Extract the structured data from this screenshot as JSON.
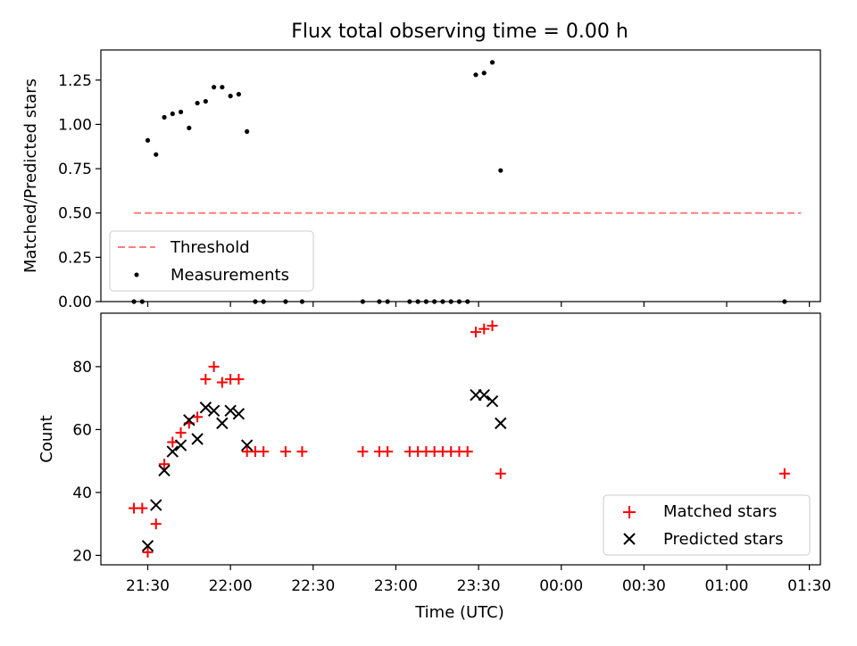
{
  "figure_title": "Flux total observing time = 0.00 h",
  "chart_data": [
    {
      "type": "scatter",
      "panel": "top",
      "title": "Flux total observing time = 0.00 h",
      "xlabel": "",
      "ylabel": "Matched/Predicted stars",
      "xlim": [
        "21:13",
        "01:34"
      ],
      "ylim": [
        0,
        1.42
      ],
      "yticks": [
        0.0,
        0.25,
        0.5,
        0.75,
        1.0,
        1.25
      ],
      "ytick_labels": [
        "0.00",
        "0.25",
        "0.50",
        "0.75",
        "1.00",
        "1.25"
      ],
      "legend_position": "lower-left",
      "threshold": {
        "name": "Threshold",
        "color": "#ff7f7f",
        "x": [
          "21:25",
          "01:27"
        ],
        "y": 0.5
      },
      "series": [
        {
          "name": "Measurements",
          "color": "#000000",
          "marker": "dot",
          "points": [
            {
              "x": "21:25",
              "y": 0.0
            },
            {
              "x": "21:28",
              "y": 0.0
            },
            {
              "x": "21:30",
              "y": 0.91
            },
            {
              "x": "21:33",
              "y": 0.83
            },
            {
              "x": "21:36",
              "y": 1.04
            },
            {
              "x": "21:39",
              "y": 1.06
            },
            {
              "x": "21:42",
              "y": 1.07
            },
            {
              "x": "21:45",
              "y": 0.98
            },
            {
              "x": "21:48",
              "y": 1.12
            },
            {
              "x": "21:51",
              "y": 1.13
            },
            {
              "x": "21:54",
              "y": 1.21
            },
            {
              "x": "21:57",
              "y": 1.21
            },
            {
              "x": "22:00",
              "y": 1.16
            },
            {
              "x": "22:03",
              "y": 1.17
            },
            {
              "x": "22:06",
              "y": 0.96
            },
            {
              "x": "22:09",
              "y": 0.0
            },
            {
              "x": "22:12",
              "y": 0.0
            },
            {
              "x": "22:20",
              "y": 0.0
            },
            {
              "x": "22:26",
              "y": 0.0
            },
            {
              "x": "22:48",
              "y": 0.0
            },
            {
              "x": "22:54",
              "y": 0.0
            },
            {
              "x": "22:57",
              "y": 0.0
            },
            {
              "x": "23:05",
              "y": 0.0
            },
            {
              "x": "23:08",
              "y": 0.0
            },
            {
              "x": "23:11",
              "y": 0.0
            },
            {
              "x": "23:14",
              "y": 0.0
            },
            {
              "x": "23:17",
              "y": 0.0
            },
            {
              "x": "23:20",
              "y": 0.0
            },
            {
              "x": "23:23",
              "y": 0.0
            },
            {
              "x": "23:26",
              "y": 0.0
            },
            {
              "x": "23:29",
              "y": 1.28
            },
            {
              "x": "23:32",
              "y": 1.29
            },
            {
              "x": "23:35",
              "y": 1.35
            },
            {
              "x": "23:38",
              "y": 0.74
            },
            {
              "x": "01:21",
              "y": 0.0
            }
          ]
        }
      ]
    },
    {
      "type": "scatter",
      "panel": "bottom",
      "xlabel": "Time (UTC)",
      "ylabel": "Count",
      "xlim": [
        "21:13",
        "01:34"
      ],
      "ylim": [
        17,
        97
      ],
      "yticks": [
        20,
        40,
        60,
        80
      ],
      "ytick_labels": [
        "20",
        "40",
        "60",
        "80"
      ],
      "xticks": [
        "21:30",
        "22:00",
        "22:30",
        "23:00",
        "23:30",
        "00:00",
        "00:30",
        "01:00",
        "01:30"
      ],
      "legend_position": "lower-right",
      "series": [
        {
          "name": "Matched stars",
          "color": "#ff0000",
          "marker": "plus",
          "points": [
            {
              "x": "21:25",
              "y": 35
            },
            {
              "x": "21:28",
              "y": 35
            },
            {
              "x": "21:30",
              "y": 21
            },
            {
              "x": "21:33",
              "y": 30
            },
            {
              "x": "21:36",
              "y": 49
            },
            {
              "x": "21:39",
              "y": 56
            },
            {
              "x": "21:42",
              "y": 59
            },
            {
              "x": "21:45",
              "y": 62
            },
            {
              "x": "21:48",
              "y": 64
            },
            {
              "x": "21:51",
              "y": 76
            },
            {
              "x": "21:54",
              "y": 80
            },
            {
              "x": "21:57",
              "y": 75
            },
            {
              "x": "22:00",
              "y": 76
            },
            {
              "x": "22:03",
              "y": 76
            },
            {
              "x": "22:06",
              "y": 53
            },
            {
              "x": "22:09",
              "y": 53
            },
            {
              "x": "22:12",
              "y": 53
            },
            {
              "x": "22:20",
              "y": 53
            },
            {
              "x": "22:26",
              "y": 53
            },
            {
              "x": "22:48",
              "y": 53
            },
            {
              "x": "22:54",
              "y": 53
            },
            {
              "x": "22:57",
              "y": 53
            },
            {
              "x": "23:05",
              "y": 53
            },
            {
              "x": "23:08",
              "y": 53
            },
            {
              "x": "23:11",
              "y": 53
            },
            {
              "x": "23:14",
              "y": 53
            },
            {
              "x": "23:17",
              "y": 53
            },
            {
              "x": "23:20",
              "y": 53
            },
            {
              "x": "23:23",
              "y": 53
            },
            {
              "x": "23:26",
              "y": 53
            },
            {
              "x": "23:29",
              "y": 91
            },
            {
              "x": "23:32",
              "y": 92
            },
            {
              "x": "23:35",
              "y": 93
            },
            {
              "x": "23:38",
              "y": 46
            },
            {
              "x": "01:21",
              "y": 46
            }
          ]
        },
        {
          "name": "Predicted stars",
          "color": "#000000",
          "marker": "x",
          "points": [
            {
              "x": "21:30",
              "y": 23
            },
            {
              "x": "21:33",
              "y": 36
            },
            {
              "x": "21:36",
              "y": 47
            },
            {
              "x": "21:39",
              "y": 53
            },
            {
              "x": "21:42",
              "y": 55
            },
            {
              "x": "21:45",
              "y": 63
            },
            {
              "x": "21:48",
              "y": 57
            },
            {
              "x": "21:51",
              "y": 67
            },
            {
              "x": "21:54",
              "y": 66
            },
            {
              "x": "21:57",
              "y": 62
            },
            {
              "x": "22:00",
              "y": 66
            },
            {
              "x": "22:03",
              "y": 65
            },
            {
              "x": "22:06",
              "y": 55
            },
            {
              "x": "23:29",
              "y": 71
            },
            {
              "x": "23:32",
              "y": 71
            },
            {
              "x": "23:35",
              "y": 69
            },
            {
              "x": "23:38",
              "y": 62
            }
          ]
        }
      ]
    }
  ]
}
